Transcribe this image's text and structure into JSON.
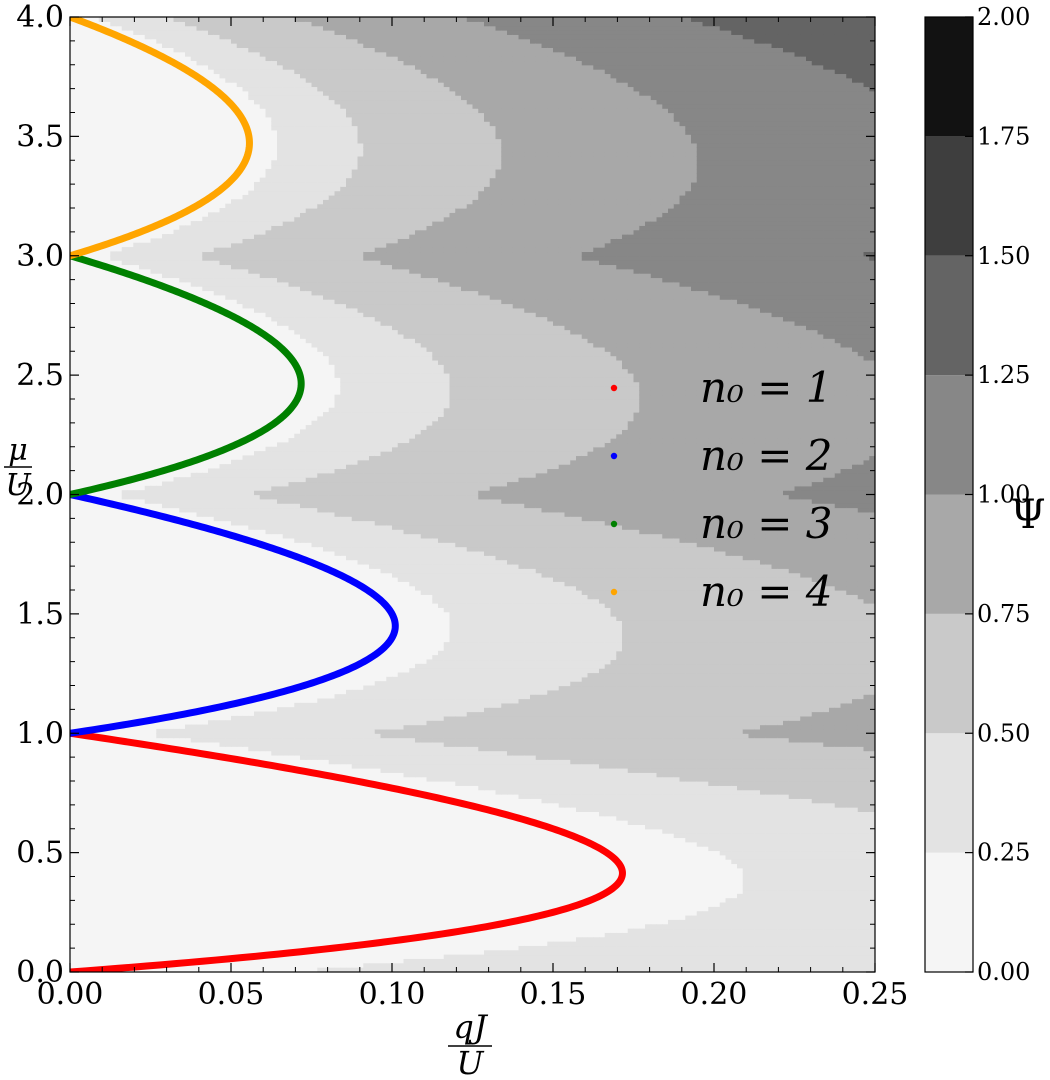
{
  "chart_data": {
    "type": "heatmap",
    "title": "",
    "xlabel": {
      "num": "qJ",
      "den": "U"
    },
    "ylabel": {
      "num": "μ",
      "den": "U"
    },
    "xlim": [
      0.0,
      0.25
    ],
    "ylim": [
      0.0,
      4.0
    ],
    "x_ticks": [
      "0.00",
      "0.05",
      "0.10",
      "0.15",
      "0.20",
      "0.25"
    ],
    "y_ticks": [
      "0.0",
      "0.5",
      "1.0",
      "1.5",
      "2.0",
      "2.5",
      "3.0",
      "3.5",
      "4.0"
    ],
    "grid": false,
    "colorbar": {
      "label": "Ψ",
      "levels": [
        0.0,
        0.25,
        0.5,
        0.75,
        1.0,
        1.25,
        1.5,
        1.75,
        2.0
      ],
      "tick_labels": [
        "0.00",
        "0.25",
        "0.50",
        "0.75",
        "1.00",
        "1.25",
        "1.50",
        "1.75",
        "2.00"
      ],
      "colors": [
        "#f5f5f5",
        "#e3e3e3",
        "#c9c9c9",
        "#a8a8a8",
        "#878787",
        "#646464",
        "#3e3e3e",
        "#121212"
      ]
    },
    "lobe_tips": [
      {
        "n0": 1,
        "mu_center": 0.414,
        "qJ_tip": 0.1716
      },
      {
        "n0": 2,
        "mu_center": 1.449,
        "qJ_tip": 0.101
      },
      {
        "n0": 3,
        "mu_center": 2.464,
        "qJ_tip": 0.0718
      },
      {
        "n0": 4,
        "mu_center": 3.472,
        "qJ_tip": 0.0557
      }
    ],
    "contour_scale": {
      "a": 1.35,
      "b": 0.5
    },
    "legend": {
      "placement": "center-right",
      "entries": [
        {
          "label": "n₀ = 1",
          "color": "#ff0000"
        },
        {
          "label": "n₀ = 2",
          "color": "#0000ff"
        },
        {
          "label": "n₀ = 3",
          "color": "#008000"
        },
        {
          "label": "n₀ = 4",
          "color": "#ffa500"
        }
      ]
    }
  }
}
